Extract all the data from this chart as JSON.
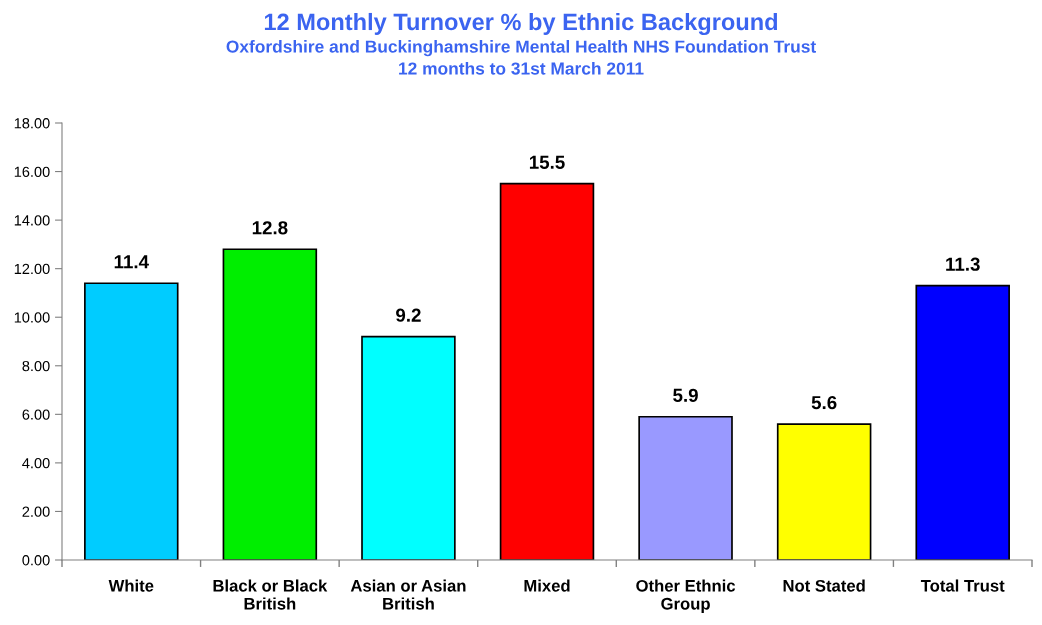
{
  "chart_data": {
    "type": "bar",
    "title": "12 Monthly Turnover % by Ethnic Background",
    "subtitle": "Oxfordshire and Buckinghamshire Mental Health NHS Foundation Trust\n12 months to 31st March 2011",
    "categories": [
      "White",
      "Black or Black British",
      "Asian or Asian British",
      "Mixed",
      "Other Ethnic Group",
      "Not Stated",
      "Total Trust"
    ],
    "values": [
      11.4,
      12.8,
      9.2,
      15.5,
      5.9,
      5.6,
      11.3
    ],
    "colors": [
      "#00ccff",
      "#00ee00",
      "#00ffff",
      "#ff0000",
      "#9999ff",
      "#ffff00",
      "#0000ff"
    ],
    "ylim": [
      0,
      18
    ],
    "yticks": [
      {
        "value": 0,
        "label": "0.00"
      },
      {
        "value": 2,
        "label": "2.00"
      },
      {
        "value": 4,
        "label": "4.00"
      },
      {
        "value": 6,
        "label": "6.00"
      },
      {
        "value": 8,
        "label": "8.00"
      },
      {
        "value": 10,
        "label": "10.00"
      },
      {
        "value": 12,
        "label": "12.00"
      },
      {
        "value": 14,
        "label": "14.00"
      },
      {
        "value": 16,
        "label": "16.00"
      },
      {
        "value": 18,
        "label": "18.00"
      }
    ],
    "data_labels": true,
    "grid": false
  }
}
